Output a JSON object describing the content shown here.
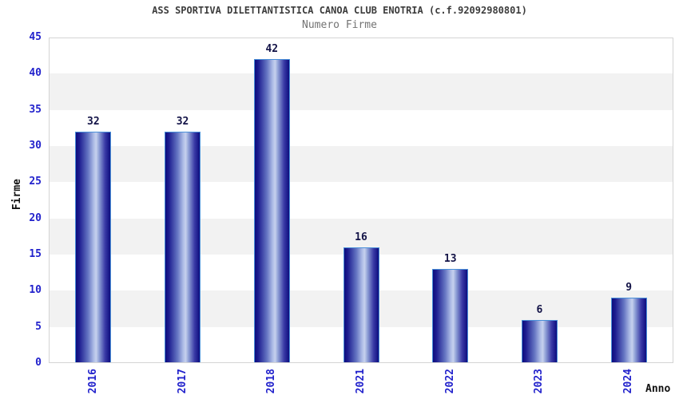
{
  "chart_data": {
    "type": "bar",
    "title": "ASS SPORTIVA DILETTANTISTICA CANOA CLUB ENOTRIA (c.f.92092980801)",
    "subtitle": "Numero Firme",
    "xlabel": "Anno",
    "ylabel": "Firme",
    "categories": [
      "2016",
      "2017",
      "2018",
      "2021",
      "2022",
      "2023",
      "2024"
    ],
    "values": [
      32,
      32,
      42,
      16,
      13,
      6,
      9
    ],
    "ylim": [
      0,
      45
    ],
    "ytick_step": 5,
    "grid": "horizontal-bands-alternating",
    "legend": "none",
    "colors": {
      "background": "#ffffff",
      "band_light": "#ffffff",
      "band_alt": "#f2f2f2",
      "plot_border": "#d4d4d4",
      "tick_label": "#2222cc",
      "value_label": "#131347",
      "title": "#3c3c3c",
      "subtitle": "#737373",
      "axis_title": "#111111",
      "bar_outline": "#4a90d9",
      "bar_gradient_stops": [
        "#0d0d7e",
        "#1d1d90",
        "#6474c2",
        "#aebce6",
        "#c6d1ee",
        "#8d9ed5",
        "#3a3aa6",
        "#0d0d7e"
      ],
      "bar_gradient_positions": [
        0,
        10,
        35,
        52,
        59,
        68,
        85,
        100
      ]
    }
  }
}
